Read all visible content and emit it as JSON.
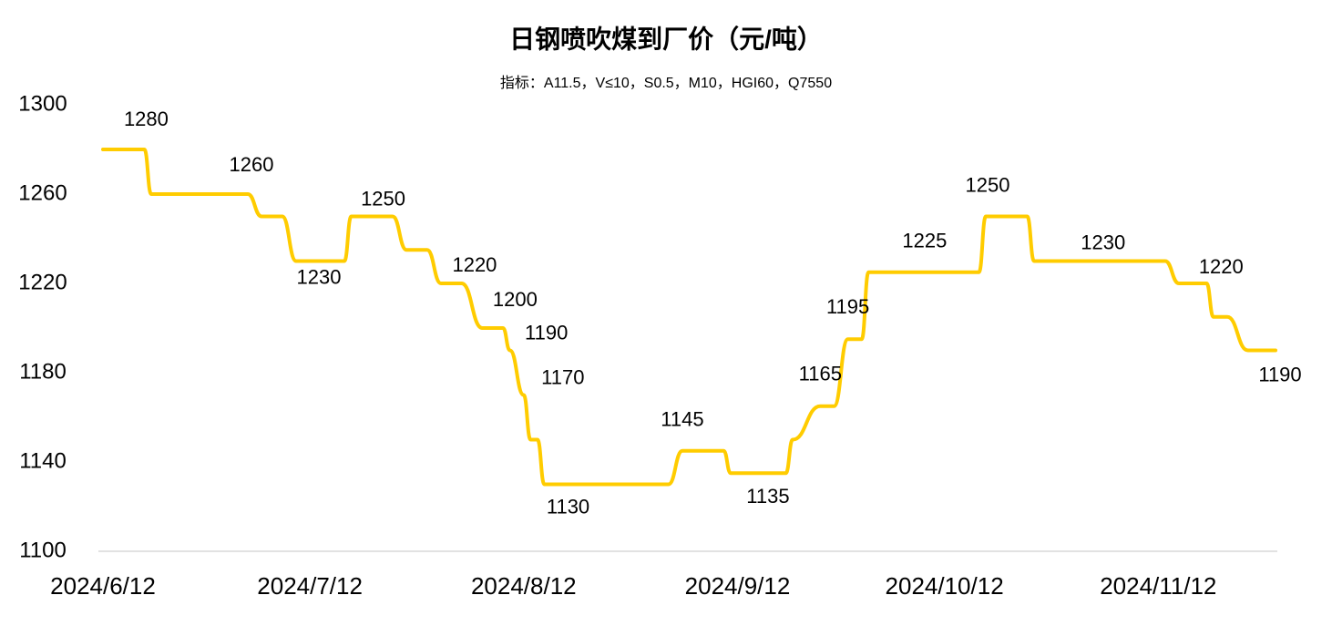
{
  "chart_data": {
    "type": "line",
    "title": "日钢喷吹煤到厂价（元/吨）",
    "subtitle": "指标：A11.5，V≤10，S0.5，M10，HGI60，Q7550",
    "x": [
      "2024/6/12",
      "2024/6/18",
      "2024/6/19",
      "2024/7/3",
      "2024/7/5",
      "2024/7/8",
      "2024/7/10",
      "2024/7/17",
      "2024/7/18",
      "2024/7/24",
      "2024/7/26",
      "2024/7/29",
      "2024/7/31",
      "2024/8/3",
      "2024/8/6",
      "2024/8/9",
      "2024/8/10",
      "2024/8/12",
      "2024/8/13",
      "2024/8/14",
      "2024/8/15",
      "2024/8/30",
      "2024/9/2",
      "2024/9/4",
      "2024/9/10",
      "2024/9/11",
      "2024/9/19",
      "2024/9/20",
      "2024/9/24",
      "2024/9/26",
      "2024/9/28",
      "2024/9/30",
      "2024/10/1",
      "2024/10/9",
      "2024/10/17",
      "2024/10/18",
      "2024/10/24",
      "2024/10/25",
      "2024/11/4",
      "2024/11/13",
      "2024/11/15",
      "2024/11/19",
      "2024/11/20",
      "2024/11/22",
      "2024/11/25",
      "2024/11/29"
    ],
    "series": [
      {
        "color": "#FFCC00",
        "values": [
          1280,
          1280,
          1260,
          1260,
          1250,
          1250,
          1230,
          1230,
          1250,
          1250,
          1235,
          1235,
          1220,
          1220,
          1200,
          1200,
          1190,
          1170,
          1150,
          1150,
          1130,
          1130,
          1130,
          1145,
          1145,
          1135,
          1135,
          1150,
          1165,
          1165,
          1195,
          1195,
          1225,
          1225,
          1225,
          1250,
          1250,
          1230,
          1230,
          1230,
          1220,
          1220,
          1205,
          1205,
          1190,
          1190
        ],
        "value_labels": [
          null,
          "1280",
          null,
          "1260",
          null,
          null,
          "1230",
          null,
          "1250",
          null,
          null,
          null,
          "1220",
          null,
          "1200",
          null,
          "1190",
          "1170",
          null,
          null,
          "1130",
          null,
          null,
          "1145",
          null,
          "1135",
          null,
          null,
          "1165",
          null,
          "1195",
          null,
          null,
          "1225",
          null,
          "1250",
          null,
          null,
          "1230",
          null,
          null,
          "1220",
          null,
          null,
          null,
          "1190"
        ]
      }
    ],
    "xlim": [
      "2024/6/12",
      "2024/11/29"
    ],
    "xticks": [
      "2024/6/12",
      "2024/7/12",
      "2024/8/12",
      "2024/9/12",
      "2024/10/12",
      "2024/11/12"
    ],
    "ylim": [
      1100,
      1300
    ],
    "yticks": [
      1100,
      1140,
      1180,
      1220,
      1260,
      1300
    ]
  }
}
